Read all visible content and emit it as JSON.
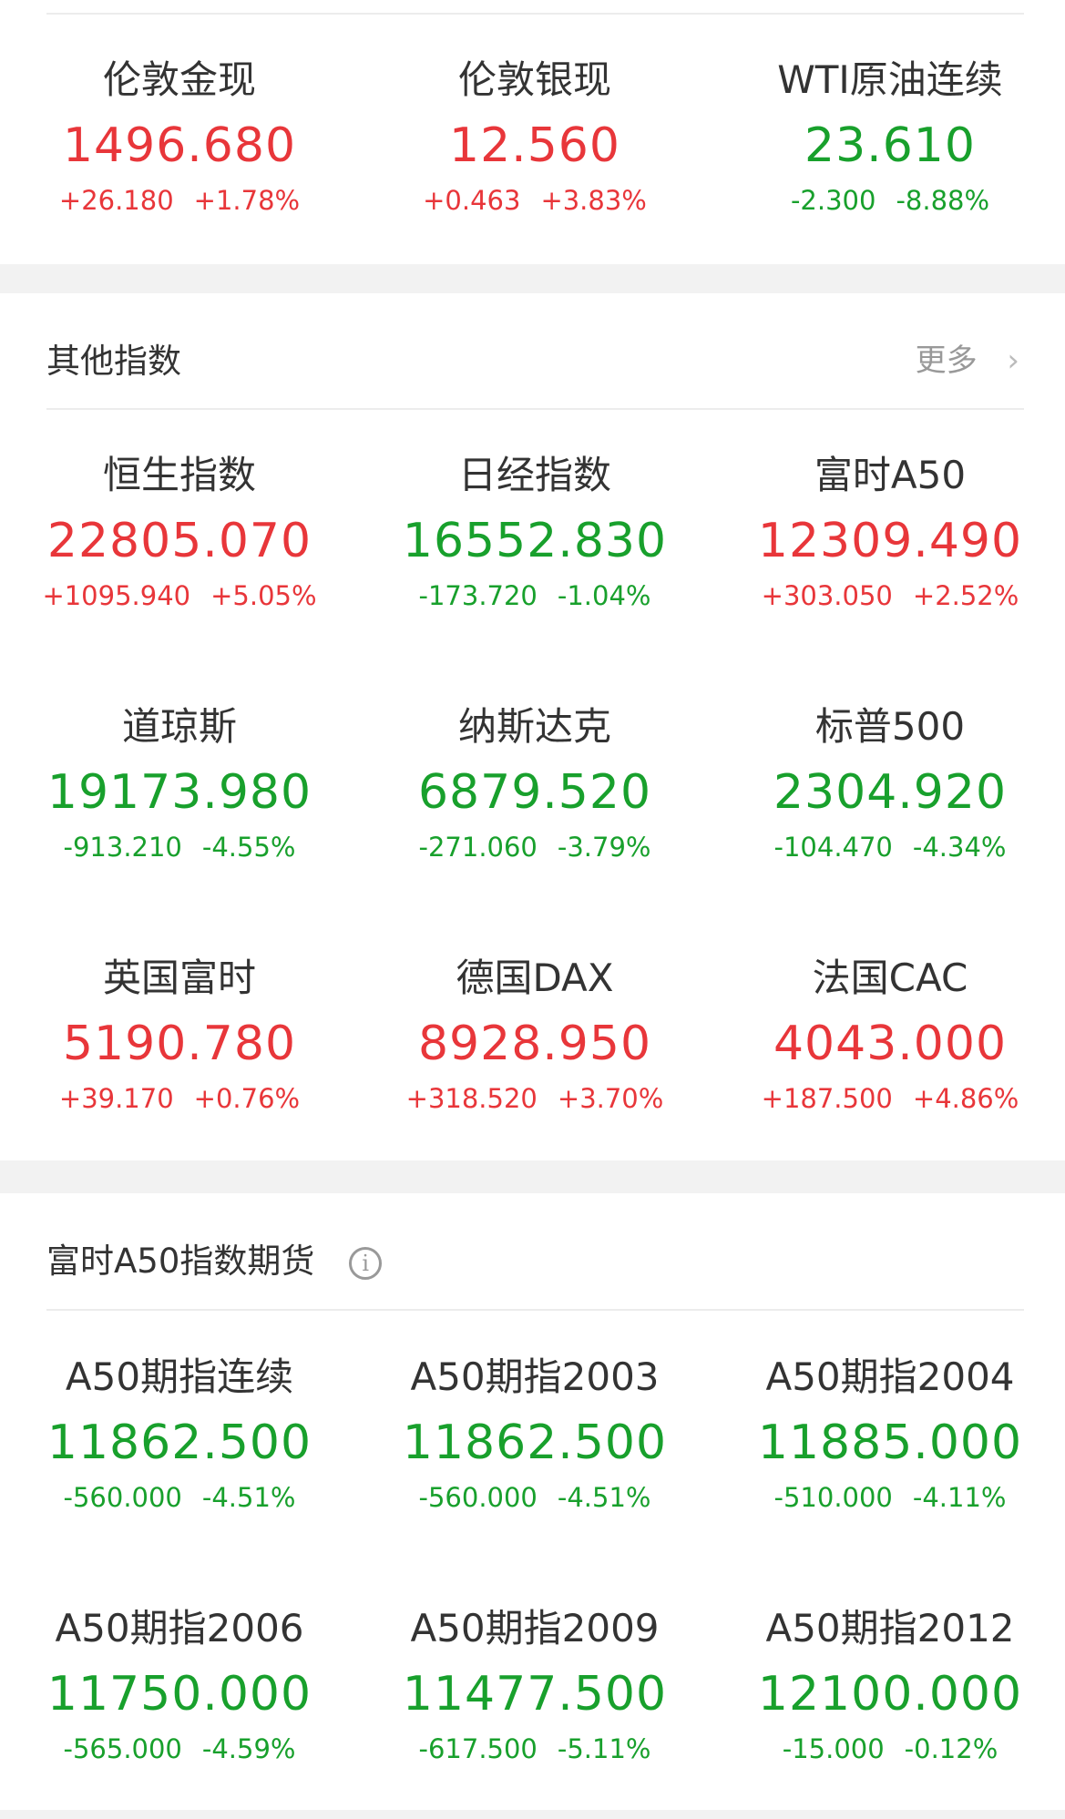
{
  "colors": {
    "up": "#e8363a",
    "down": "#18a02c"
  },
  "commodities": {
    "items": [
      {
        "name": "伦敦金现",
        "value": "1496.680",
        "change": "+26.180",
        "pct": "+1.78%",
        "dir": "up"
      },
      {
        "name": "伦敦银现",
        "value": "12.560",
        "change": "+0.463",
        "pct": "+3.83%",
        "dir": "up"
      },
      {
        "name": "WTI原油连续",
        "value": "23.610",
        "change": "-2.300",
        "pct": "-8.88%",
        "dir": "down"
      }
    ]
  },
  "other_indices": {
    "title": "其他指数",
    "more_label": "更多",
    "more_icon": "chevron-right-icon",
    "items": [
      {
        "name": "恒生指数",
        "value": "22805.070",
        "change": "+1095.940",
        "pct": "+5.05%",
        "dir": "up"
      },
      {
        "name": "日经指数",
        "value": "16552.830",
        "change": "-173.720",
        "pct": "-1.04%",
        "dir": "down"
      },
      {
        "name": "富时A50",
        "value": "12309.490",
        "change": "+303.050",
        "pct": "+2.52%",
        "dir": "up"
      },
      {
        "name": "道琼斯",
        "value": "19173.980",
        "change": "-913.210",
        "pct": "-4.55%",
        "dir": "down"
      },
      {
        "name": "纳斯达克",
        "value": "6879.520",
        "change": "-271.060",
        "pct": "-3.79%",
        "dir": "down"
      },
      {
        "name": "标普500",
        "value": "2304.920",
        "change": "-104.470",
        "pct": "-4.34%",
        "dir": "down"
      },
      {
        "name": "英国富时",
        "value": "5190.780",
        "change": "+39.170",
        "pct": "+0.76%",
        "dir": "up"
      },
      {
        "name": "德国DAX",
        "value": "8928.950",
        "change": "+318.520",
        "pct": "+3.70%",
        "dir": "up"
      },
      {
        "name": "法国CAC",
        "value": "4043.000",
        "change": "+187.500",
        "pct": "+4.86%",
        "dir": "up"
      }
    ]
  },
  "a50_futures": {
    "title": "富时A50指数期货",
    "info_icon": "info-icon",
    "info_glyph": "i",
    "items": [
      {
        "name": "A50期指连续",
        "value": "11862.500",
        "change": "-560.000",
        "pct": "-4.51%",
        "dir": "down"
      },
      {
        "name": "A50期指2003",
        "value": "11862.500",
        "change": "-560.000",
        "pct": "-4.51%",
        "dir": "down"
      },
      {
        "name": "A50期指2004",
        "value": "11885.000",
        "change": "-510.000",
        "pct": "-4.11%",
        "dir": "down"
      },
      {
        "name": "A50期指2006",
        "value": "11750.000",
        "change": "-565.000",
        "pct": "-4.59%",
        "dir": "down"
      },
      {
        "name": "A50期指2009",
        "value": "11477.500",
        "change": "-617.500",
        "pct": "-5.11%",
        "dir": "down"
      },
      {
        "name": "A50期指2012",
        "value": "12100.000",
        "change": "-15.000",
        "pct": "-0.12%",
        "dir": "down"
      }
    ]
  }
}
